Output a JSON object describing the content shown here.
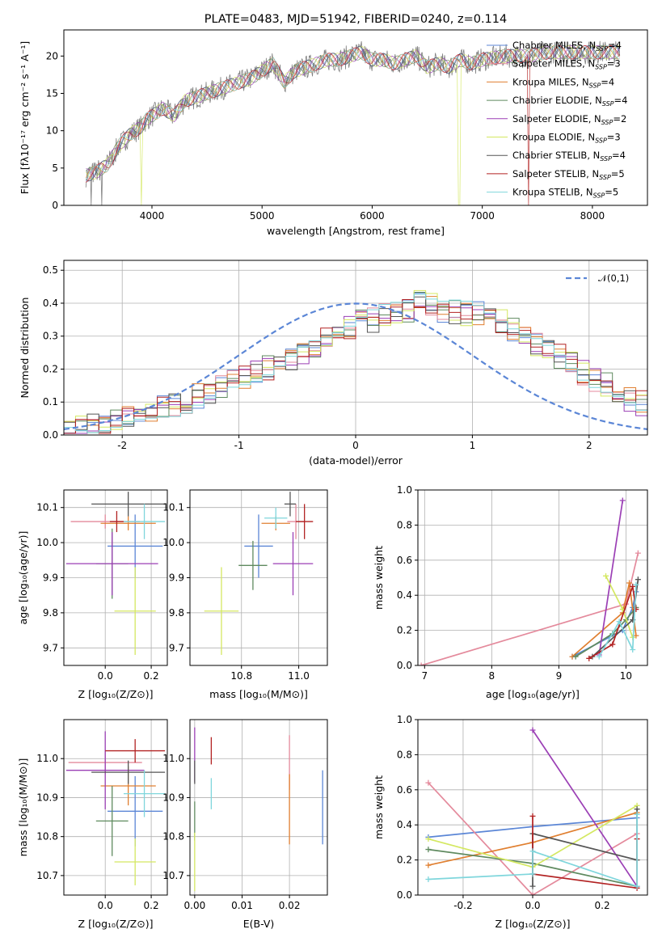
{
  "page": {
    "title": "PLATE=0483, MJD=51942, FIBERID=0240, z=0.114"
  },
  "models": [
    {
      "name": "Chabrier MILES",
      "n": "4",
      "color": "#5b86d6"
    },
    {
      "name": "Salpeter MILES",
      "n": "3",
      "color": "#e48a9c"
    },
    {
      "name": "Kroupa MILES",
      "n": "4",
      "color": "#e07f30"
    },
    {
      "name": "Chabrier ELODIE",
      "n": "4",
      "color": "#5f8a5f"
    },
    {
      "name": "Salpeter ELODIE",
      "n": "2",
      "color": "#9b3fb5"
    },
    {
      "name": "Kroupa ELODIE",
      "n": "3",
      "color": "#d4e861"
    },
    {
      "name": "Chabrier STELIB",
      "n": "4",
      "color": "#555555"
    },
    {
      "name": "Salpeter STELIB",
      "n": "5",
      "color": "#b22222"
    },
    {
      "name": "Kroupa STELIB",
      "n": "5",
      "color": "#7fd6dc"
    }
  ],
  "chart_data": [
    {
      "id": "spectrum",
      "type": "line",
      "title": "PLATE=0483, MJD=51942, FIBERID=0240, z=0.114",
      "xlabel": "wavelength [Angstrom, rest frame]",
      "ylabel": "Flux [fλ10⁻¹⁷ erg cm⁻² s⁻¹ A⁻¹]",
      "xlim": [
        3200,
        8500
      ],
      "ylim": [
        0,
        23.5
      ],
      "xticks": [
        4000,
        5000,
        6000,
        7000,
        8000
      ],
      "yticks": [
        0,
        5,
        10,
        15,
        20
      ],
      "data_color": "#808080",
      "continuum": {
        "x": [
          3400,
          3500,
          3600,
          3700,
          3800,
          3900,
          3950,
          4000,
          4100,
          4200,
          4300,
          4400,
          4500,
          4600,
          4700,
          4800,
          4900,
          5000,
          5100,
          5200,
          5300,
          5400,
          5500,
          5600,
          5700,
          5800,
          5900,
          6000,
          6100,
          6200,
          6300,
          6400,
          6500,
          6600,
          6700,
          6800,
          6900,
          7000,
          7200,
          7400,
          7600,
          7800,
          8000,
          8250
        ],
        "y": [
          4.0,
          4.5,
          5.5,
          8.0,
          9.5,
          10.5,
          11.5,
          12.0,
          13.0,
          12.0,
          14.0,
          14.5,
          15.0,
          15.5,
          16.0,
          16.5,
          17.0,
          18.0,
          19.0,
          16.5,
          18.0,
          18.5,
          19.0,
          19.5,
          19.5,
          20.0,
          20.5,
          19.5,
          19.5,
          19.0,
          19.5,
          20.0,
          18.5,
          19.0,
          18.5,
          19.5,
          19.0,
          19.5,
          20.0,
          20.0,
          20.5,
          20.5,
          20.5,
          20.5
        ]
      },
      "dropouts": [
        {
          "model": "Kroupa ELODIE",
          "x": 3900
        },
        {
          "model": "Kroupa ELODIE",
          "x": 6790
        },
        {
          "model": "Salpeter STELIB",
          "x": 7420
        }
      ]
    },
    {
      "id": "residual-hist",
      "type": "histogram",
      "xlabel": "(data-model)/error",
      "ylabel": "Normed distribution",
      "xlim": [
        -2.5,
        2.5
      ],
      "ylim": [
        0,
        0.53
      ],
      "xticks": [
        -2,
        -1,
        0,
        1,
        2
      ],
      "yticks": [
        0.0,
        0.1,
        0.2,
        0.3,
        0.4,
        0.5
      ],
      "reference": {
        "label": "𝒩(0,1)",
        "mean": 0,
        "sigma": 1,
        "color": "#5b86d6"
      },
      "bins": {
        "start": -2.5,
        "width": 0.1
      },
      "base_hist": [
        0.02,
        0.025,
        0.03,
        0.04,
        0.045,
        0.055,
        0.06,
        0.07,
        0.085,
        0.095,
        0.105,
        0.12,
        0.13,
        0.145,
        0.16,
        0.175,
        0.19,
        0.205,
        0.22,
        0.235,
        0.255,
        0.275,
        0.29,
        0.31,
        0.325,
        0.34,
        0.35,
        0.36,
        0.37,
        0.38,
        0.41,
        0.395,
        0.38,
        0.375,
        0.37,
        0.365,
        0.355,
        0.34,
        0.32,
        0.3,
        0.28,
        0.26,
        0.24,
        0.215,
        0.19,
        0.17,
        0.15,
        0.13,
        0.11,
        0.095
      ]
    },
    {
      "id": "age-vs-Z",
      "type": "errorbar",
      "xlabel": "Z [log₁₀(Z/Z⊙)]",
      "ylabel": "age  [log₁₀(age/yr)]",
      "xlim": [
        -0.18,
        0.27
      ],
      "ylim": [
        9.65,
        10.15
      ],
      "xticks": [
        0.0,
        0.2
      ],
      "yticks": [
        9.7,
        9.8,
        9.9,
        10.0,
        10.1
      ],
      "points": [
        {
          "model": "Chabrier MILES",
          "x": 0.13,
          "y": 9.99,
          "xerr": 0.12,
          "yerr": 0.09
        },
        {
          "model": "Salpeter MILES",
          "x": 0.0,
          "y": 10.06,
          "xerr": 0.15,
          "yerr": 0.02
        },
        {
          "model": "Kroupa MILES",
          "x": 0.1,
          "y": 10.055,
          "xerr": 0.12,
          "yerr": 0.02
        },
        {
          "model": "Chabrier ELODIE",
          "x": 0.03,
          "y": 9.94,
          "xerr": 0.07,
          "yerr": 0.1
        },
        {
          "model": "Salpeter ELODIE",
          "x": 0.03,
          "y": 9.94,
          "xerr": 0.2,
          "yerr": 0.09
        },
        {
          "model": "Kroupa ELODIE",
          "x": 0.13,
          "y": 9.805,
          "xerr": 0.09,
          "yerr": 0.125
        },
        {
          "model": "Chabrier STELIB",
          "x": 0.1,
          "y": 10.11,
          "xerr": 0.16,
          "yerr": 0.035
        },
        {
          "model": "Salpeter STELIB",
          "x": 0.05,
          "y": 10.06,
          "xerr": 0.03,
          "yerr": 0.03
        },
        {
          "model": "Kroupa STELIB",
          "x": 0.17,
          "y": 10.06,
          "xerr": 0.09,
          "yerr": 0.05
        }
      ]
    },
    {
      "id": "age-vs-mass",
      "type": "errorbar",
      "xlabel": "mass [log₁₀(M/M⊙)]",
      "ylabel": "",
      "xlim": [
        10.62,
        11.1
      ],
      "ylim": [
        9.65,
        10.15
      ],
      "xticks": [
        10.8,
        11.0
      ],
      "yticks": [
        9.7,
        9.8,
        9.9,
        10.0,
        10.1
      ],
      "points": [
        {
          "model": "Chabrier MILES",
          "x": 10.86,
          "y": 9.99,
          "xerr": 0.05,
          "yerr": 0.09
        },
        {
          "model": "Salpeter MILES",
          "x": 10.99,
          "y": 10.06,
          "xerr": 0.03,
          "yerr": 0.05
        },
        {
          "model": "Kroupa MILES",
          "x": 10.92,
          "y": 10.055,
          "xerr": 0.05,
          "yerr": 0.02
        },
        {
          "model": "Chabrier ELODIE",
          "x": 10.84,
          "y": 9.935,
          "xerr": 0.05,
          "yerr": 0.07
        },
        {
          "model": "Salpeter ELODIE",
          "x": 10.98,
          "y": 9.94,
          "xerr": 0.07,
          "yerr": 0.09
        },
        {
          "model": "Kroupa ELODIE",
          "x": 10.73,
          "y": 9.805,
          "xerr": 0.06,
          "yerr": 0.125
        },
        {
          "model": "Chabrier STELIB",
          "x": 10.97,
          "y": 10.11,
          "xerr": 0.02,
          "yerr": 0.035
        },
        {
          "model": "Salpeter STELIB",
          "x": 11.02,
          "y": 10.06,
          "xerr": 0.03,
          "yerr": 0.05
        },
        {
          "model": "Kroupa STELIB",
          "x": 10.92,
          "y": 10.07,
          "xerr": 0.04,
          "yerr": 0.03
        }
      ]
    },
    {
      "id": "weight-vs-age",
      "type": "line",
      "xlabel": "age  [log₁₀(age/yr)]",
      "ylabel": "mass weight",
      "xlim": [
        6.9,
        10.32
      ],
      "ylim": [
        0,
        1.0
      ],
      "xticks": [
        7,
        8,
        9,
        10
      ],
      "yticks": [
        0.0,
        0.2,
        0.4,
        0.6,
        0.8,
        1.0
      ],
      "series": [
        {
          "model": "Chabrier MILES",
          "x": [
            9.2,
            9.95,
            10.1,
            10.15
          ],
          "y": [
            0.05,
            0.2,
            0.33,
            0.42
          ]
        },
        {
          "model": "Salpeter MILES",
          "x": [
            6.95,
            10.0,
            10.18
          ],
          "y": [
            0.0,
            0.35,
            0.64
          ]
        },
        {
          "model": "Kroupa MILES",
          "x": [
            9.2,
            9.95,
            10.05,
            10.15
          ],
          "y": [
            0.05,
            0.3,
            0.47,
            0.17
          ]
        },
        {
          "model": "Chabrier ELODIE",
          "x": [
            9.25,
            9.8,
            10.0,
            10.15
          ],
          "y": [
            0.05,
            0.18,
            0.26,
            0.33
          ]
        },
        {
          "model": "Salpeter ELODIE",
          "x": [
            9.6,
            9.95
          ],
          "y": [
            0.06,
            0.94
          ]
        },
        {
          "model": "Kroupa ELODIE",
          "x": [
            9.7,
            9.95,
            10.1
          ],
          "y": [
            0.51,
            0.32,
            0.16
          ]
        },
        {
          "model": "Chabrier STELIB",
          "x": [
            9.5,
            10.1,
            10.18
          ],
          "y": [
            0.05,
            0.26,
            0.49
          ]
        },
        {
          "model": "Salpeter STELIB",
          "x": [
            9.45,
            9.8,
            10.1,
            10.15
          ],
          "y": [
            0.04,
            0.12,
            0.45,
            0.32
          ]
        },
        {
          "model": "Kroupa STELIB",
          "x": [
            9.6,
            9.9,
            10.1,
            10.15
          ],
          "y": [
            0.05,
            0.25,
            0.09,
            0.46
          ]
        }
      ]
    },
    {
      "id": "mass-vs-Z",
      "type": "errorbar",
      "xlabel": "Z [log₁₀(Z/Z⊙)]",
      "ylabel": "mass [log₁₀(M/M⊙)]",
      "xlim": [
        -0.18,
        0.27
      ],
      "ylim": [
        10.65,
        11.1
      ],
      "xticks": [
        0.0,
        0.2
      ],
      "yticks": [
        10.7,
        10.8,
        10.9,
        11.0
      ],
      "points": [
        {
          "model": "Chabrier MILES",
          "x": 0.13,
          "y": 10.865,
          "xerr": 0.12,
          "yerr": 0.09
        },
        {
          "model": "Salpeter MILES",
          "x": 0.0,
          "y": 10.99,
          "xerr": 0.16,
          "yerr": 0.03
        },
        {
          "model": "Kroupa MILES",
          "x": 0.1,
          "y": 10.93,
          "xerr": 0.12,
          "yerr": 0.05
        },
        {
          "model": "Chabrier ELODIE",
          "x": 0.03,
          "y": 10.84,
          "xerr": 0.07,
          "yerr": 0.09
        },
        {
          "model": "Salpeter ELODIE",
          "x": 0.0,
          "y": 10.97,
          "xerr": 0.17,
          "yerr": 0.1
        },
        {
          "model": "Kroupa ELODIE",
          "x": 0.13,
          "y": 10.735,
          "xerr": 0.09,
          "yerr": 0.06
        },
        {
          "model": "Chabrier STELIB",
          "x": 0.1,
          "y": 10.965,
          "xerr": 0.16,
          "yerr": 0.03
        },
        {
          "model": "Salpeter STELIB",
          "x": 0.13,
          "y": 11.02,
          "xerr": 0.13,
          "yerr": 0.03
        },
        {
          "model": "Kroupa STELIB",
          "x": 0.17,
          "y": 10.91,
          "xerr": 0.09,
          "yerr": 0.06
        }
      ]
    },
    {
      "id": "mass-vs-ebv",
      "type": "errorbar",
      "xlabel": "E(B-V)",
      "ylabel": "",
      "xlim": [
        -0.001,
        0.028
      ],
      "ylim": [
        10.65,
        11.1
      ],
      "xticks": [
        0.0,
        0.01,
        0.02
      ],
      "xticklabels": [
        "0.00",
        "0.01",
        "0.02"
      ],
      "yticks": [
        10.7,
        10.8,
        10.9,
        11.0
      ],
      "points": [
        {
          "model": "Chabrier MILES",
          "x": 0.027,
          "y": 10.875,
          "xerr": 0,
          "yerr": 0.095
        },
        {
          "model": "Salpeter MILES",
          "x": 0.02,
          "y": 10.99,
          "xerr": 0,
          "yerr": 0.07
        },
        {
          "model": "Kroupa MILES",
          "x": 0.02,
          "y": 10.87,
          "xerr": 0,
          "yerr": 0.09
        },
        {
          "model": "Chabrier ELODIE",
          "x": 0.0,
          "y": 10.84,
          "xerr": 0,
          "yerr": 0.05
        },
        {
          "model": "Salpeter ELODIE",
          "x": 0.0,
          "y": 11.01,
          "xerr": 0,
          "yerr": 0.07
        },
        {
          "model": "Kroupa ELODIE",
          "x": 0.0,
          "y": 10.735,
          "xerr": 0,
          "yerr": 0.075
        },
        {
          "model": "Chabrier STELIB",
          "x": 0.0,
          "y": 10.965,
          "xerr": 0,
          "yerr": 0.03
        },
        {
          "model": "Salpeter STELIB",
          "x": 0.0035,
          "y": 11.02,
          "xerr": 0,
          "yerr": 0.035
        },
        {
          "model": "Kroupa STELIB",
          "x": 0.0035,
          "y": 10.91,
          "xerr": 0,
          "yerr": 0.04
        }
      ]
    },
    {
      "id": "weight-vs-Z",
      "type": "line",
      "xlabel": "Z [log₁₀(Z/Z⊙)]",
      "ylabel": "mass weight",
      "xlim": [
        -0.33,
        0.33
      ],
      "ylim": [
        0,
        1.0
      ],
      "xticks": [
        -0.2,
        0.0,
        0.2
      ],
      "yticks": [
        0.0,
        0.2,
        0.4,
        0.6,
        0.8,
        1.0
      ],
      "series": [
        {
          "model": "Chabrier MILES",
          "x": [
            -0.3,
            0.0,
            0.3
          ],
          "y": [
            0.33,
            0.39,
            0.44
          ]
        },
        {
          "model": "Salpeter MILES",
          "x": [
            -0.3,
            0.0,
            0.3
          ],
          "y": [
            0.64,
            0.0,
            0.35
          ]
        },
        {
          "model": "Kroupa MILES",
          "x": [
            -0.3,
            0.0,
            0.3
          ],
          "y": [
            0.17,
            0.3,
            0.47
          ]
        },
        {
          "model": "Chabrier ELODIE",
          "x": [
            -0.3,
            0.0,
            0.3
          ],
          "y": [
            0.26,
            0.18,
            0.05
          ]
        },
        {
          "model": "Salpeter ELODIE",
          "x": [
            0.0,
            0.3
          ],
          "y": [
            0.94,
            0.05
          ]
        },
        {
          "model": "Kroupa ELODIE",
          "x": [
            -0.3,
            0.0,
            0.3
          ],
          "y": [
            0.32,
            0.16,
            0.51
          ]
        },
        {
          "model": "Chabrier STELIB",
          "x": [
            0.0,
            0.0,
            0.3,
            0.3
          ],
          "y": [
            0.05,
            0.35,
            0.2,
            0.49
          ]
        },
        {
          "model": "Salpeter STELIB",
          "x": [
            0.0,
            0.0,
            0.3,
            0.3
          ],
          "y": [
            0.45,
            0.12,
            0.04,
            0.32
          ]
        },
        {
          "model": "Kroupa STELIB",
          "x": [
            -0.3,
            0.0,
            0.0,
            0.3,
            0.3
          ],
          "y": [
            0.09,
            0.12,
            0.25,
            0.05,
            0.46
          ]
        }
      ]
    }
  ]
}
